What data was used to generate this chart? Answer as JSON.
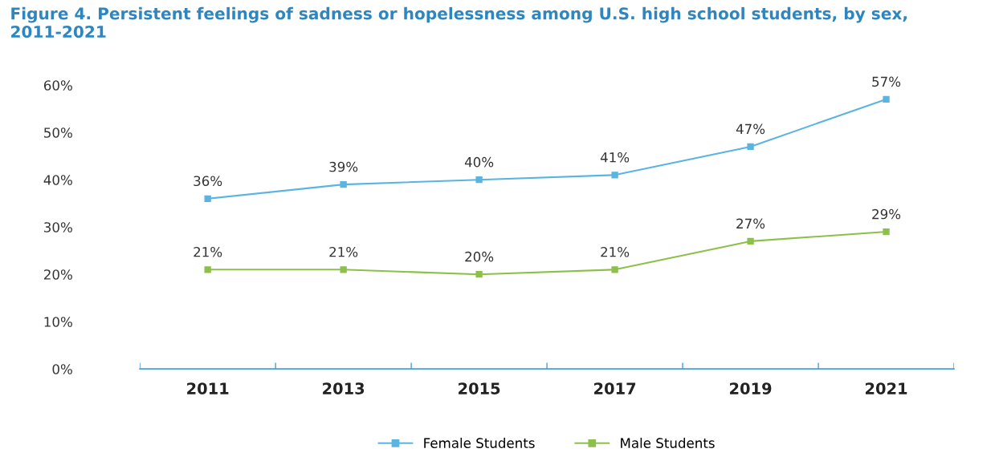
{
  "chart_data": {
    "type": "line",
    "title": "Figure 4. Persistent feelings of sadness or hopelessness among U.S. high school students, by sex, 2011-2021",
    "categories": [
      "2011",
      "2013",
      "2015",
      "2017",
      "2019",
      "2021"
    ],
    "series": [
      {
        "name": "Female Students",
        "color": "#5ab4e2",
        "values": [
          36,
          39,
          40,
          41,
          47,
          57
        ],
        "value_labels": [
          "36%",
          "39%",
          "40%",
          "41%",
          "47%",
          "57%"
        ]
      },
      {
        "name": "Male Students",
        "color": "#8dc04b",
        "values": [
          21,
          21,
          20,
          21,
          27,
          29
        ],
        "value_labels": [
          "21%",
          "21%",
          "20%",
          "21%",
          "27%",
          "29%"
        ]
      }
    ],
    "ylim": [
      0,
      60
    ],
    "yticks": [
      {
        "value": 0,
        "label": "0%"
      },
      {
        "value": 10,
        "label": "10%"
      },
      {
        "value": 20,
        "label": "20%"
      },
      {
        "value": 30,
        "label": "30%"
      },
      {
        "value": 40,
        "label": "40%"
      },
      {
        "value": 50,
        "label": "50%"
      },
      {
        "value": 60,
        "label": "60%"
      }
    ],
    "grid": false,
    "legend": "bottom",
    "marker": "square",
    "line_style": "solid"
  }
}
